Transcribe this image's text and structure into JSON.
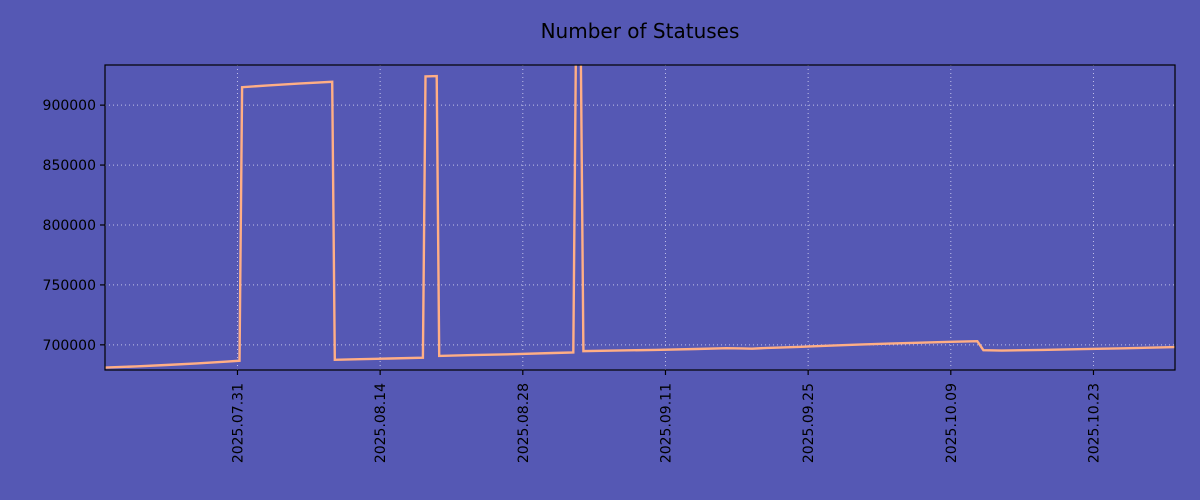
{
  "chart_data": {
    "type": "line",
    "title": "Number of Statuses",
    "background_color": "#5558b4",
    "line_color": "#ffae85",
    "grid_color": "#d4d4f2",
    "axis_color": "#000000",
    "text_color": "#000000",
    "grid": true,
    "legend": "none",
    "x_unit": "days (offset from first visible sample)",
    "x_start_date": "2025.07.18",
    "xlim": [
      0,
      105
    ],
    "ylim": [
      679000,
      933500
    ],
    "y_ticks": [
      {
        "value": 700000,
        "label": "700000"
      },
      {
        "value": 750000,
        "label": "750000"
      },
      {
        "value": 800000,
        "label": "800000"
      },
      {
        "value": 850000,
        "label": "850000"
      },
      {
        "value": 900000,
        "label": "900000"
      }
    ],
    "x_ticks": [
      {
        "day": 13,
        "label": "2025.07.31"
      },
      {
        "day": 27,
        "label": "2025.08.14"
      },
      {
        "day": 41,
        "label": "2025.08.28"
      },
      {
        "day": 55,
        "label": "2025.09.11"
      },
      {
        "day": 69,
        "label": "2025.09.25"
      },
      {
        "day": 83,
        "label": "2025.10.09"
      },
      {
        "day": 97,
        "label": "2025.10.23"
      }
    ],
    "series": [
      {
        "name": "statuses",
        "points": [
          [
            0,
            681000
          ],
          [
            3,
            682000
          ],
          [
            6,
            683200
          ],
          [
            9,
            684500
          ],
          [
            12,
            686000
          ],
          [
            13.2,
            686800
          ],
          [
            13.45,
            915000
          ],
          [
            16,
            916500
          ],
          [
            19,
            918000
          ],
          [
            22.3,
            919500
          ],
          [
            22.55,
            687500
          ],
          [
            25,
            688000
          ],
          [
            28,
            688600
          ],
          [
            31.2,
            689300
          ],
          [
            31.45,
            924000
          ],
          [
            32.55,
            924200
          ],
          [
            32.8,
            690800
          ],
          [
            36,
            691400
          ],
          [
            40,
            692200
          ],
          [
            44,
            693200
          ],
          [
            45.95,
            693700
          ],
          [
            46.2,
            935500
          ],
          [
            46.7,
            935500
          ],
          [
            46.95,
            694800
          ],
          [
            50,
            695200
          ],
          [
            54,
            695800
          ],
          [
            58,
            696500
          ],
          [
            61,
            697200
          ],
          [
            62.5,
            697000
          ],
          [
            63.5,
            696800
          ],
          [
            65,
            697400
          ],
          [
            68,
            698300
          ],
          [
            71,
            699300
          ],
          [
            74,
            700200
          ],
          [
            77,
            701000
          ],
          [
            80,
            701800
          ],
          [
            83,
            702500
          ],
          [
            85.6,
            703000
          ],
          [
            86.2,
            695500
          ],
          [
            88,
            695200
          ],
          [
            92,
            695800
          ],
          [
            96,
            696400
          ],
          [
            100,
            697100
          ],
          [
            104,
            697900
          ],
          [
            105,
            698100
          ]
        ]
      }
    ]
  }
}
